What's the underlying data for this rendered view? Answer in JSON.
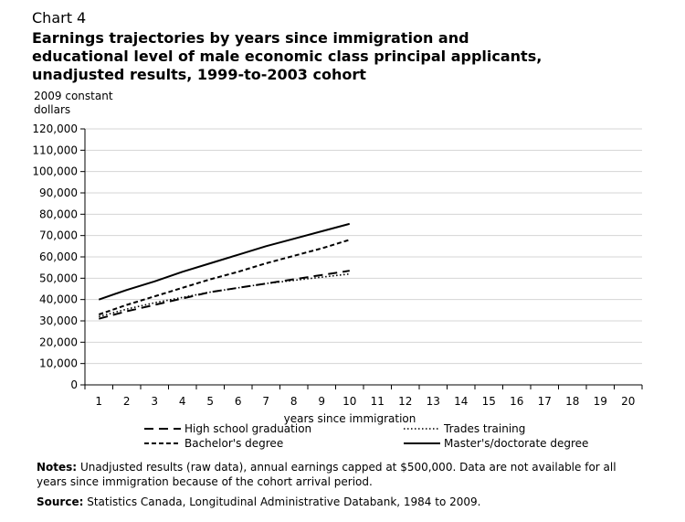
{
  "header": {
    "chart_number": "Chart 4",
    "title": "Earnings trajectories by years since immigration and educational level of male economic class principal applicants, unadjusted results, 1999-to-2003 cohort",
    "y_unit_line1": "2009 constant",
    "y_unit_line2": "dollars"
  },
  "chart_data": {
    "type": "line",
    "title": "Earnings trajectories by years since immigration and educational level of male economic class principal applicants, unadjusted results, 1999-to-2003 cohort",
    "xlabel": "years since immigration",
    "ylabel": "2009 constant dollars",
    "ylim": [
      0,
      120000
    ],
    "yticks": [
      "0",
      "10,000",
      "20,000",
      "30,000",
      "40,000",
      "50,000",
      "60,000",
      "70,000",
      "80,000",
      "90,000",
      "100,000",
      "110,000",
      "120,000"
    ],
    "x": [
      1,
      2,
      3,
      4,
      5,
      6,
      7,
      8,
      9,
      10,
      11,
      12,
      13,
      14,
      15,
      16,
      17,
      18,
      19,
      20
    ],
    "grid": true,
    "series": [
      {
        "name": "High school graduation",
        "style": "dashed",
        "values": [
          31000,
          34500,
          37500,
          40500,
          43500,
          45500,
          47500,
          49500,
          51500,
          53500,
          null,
          null,
          null,
          null,
          null,
          null,
          null,
          null,
          null,
          null
        ]
      },
      {
        "name": "Trades training",
        "style": "dotted",
        "values": [
          32000,
          35500,
          38500,
          41000,
          43500,
          45500,
          47500,
          49000,
          50500,
          52000,
          null,
          null,
          null,
          null,
          null,
          null,
          null,
          null,
          null,
          null
        ]
      },
      {
        "name": "Bachelor's degree",
        "style": "short-dashed",
        "values": [
          33000,
          37500,
          41500,
          45500,
          49500,
          53000,
          57000,
          60500,
          64000,
          68000,
          null,
          null,
          null,
          null,
          null,
          null,
          null,
          null,
          null,
          null
        ]
      },
      {
        "name": "Master's/doctorate degree",
        "style": "solid",
        "values": [
          40000,
          44500,
          48500,
          53000,
          57000,
          61000,
          65000,
          68500,
          72000,
          75500,
          null,
          null,
          null,
          null,
          null,
          null,
          null,
          null,
          null,
          null
        ]
      }
    ],
    "legend_placement": "bottom"
  },
  "footer": {
    "notes_label": "Notes:",
    "notes_text": "Unadjusted results (raw data), annual earnings capped at $500,000. Data are not available for all years since immigration because of the cohort arrival period.",
    "source_label": "Source:",
    "source_text": "Statistics Canada, Longitudinal Administrative Databank, 1984 to 2009."
  }
}
